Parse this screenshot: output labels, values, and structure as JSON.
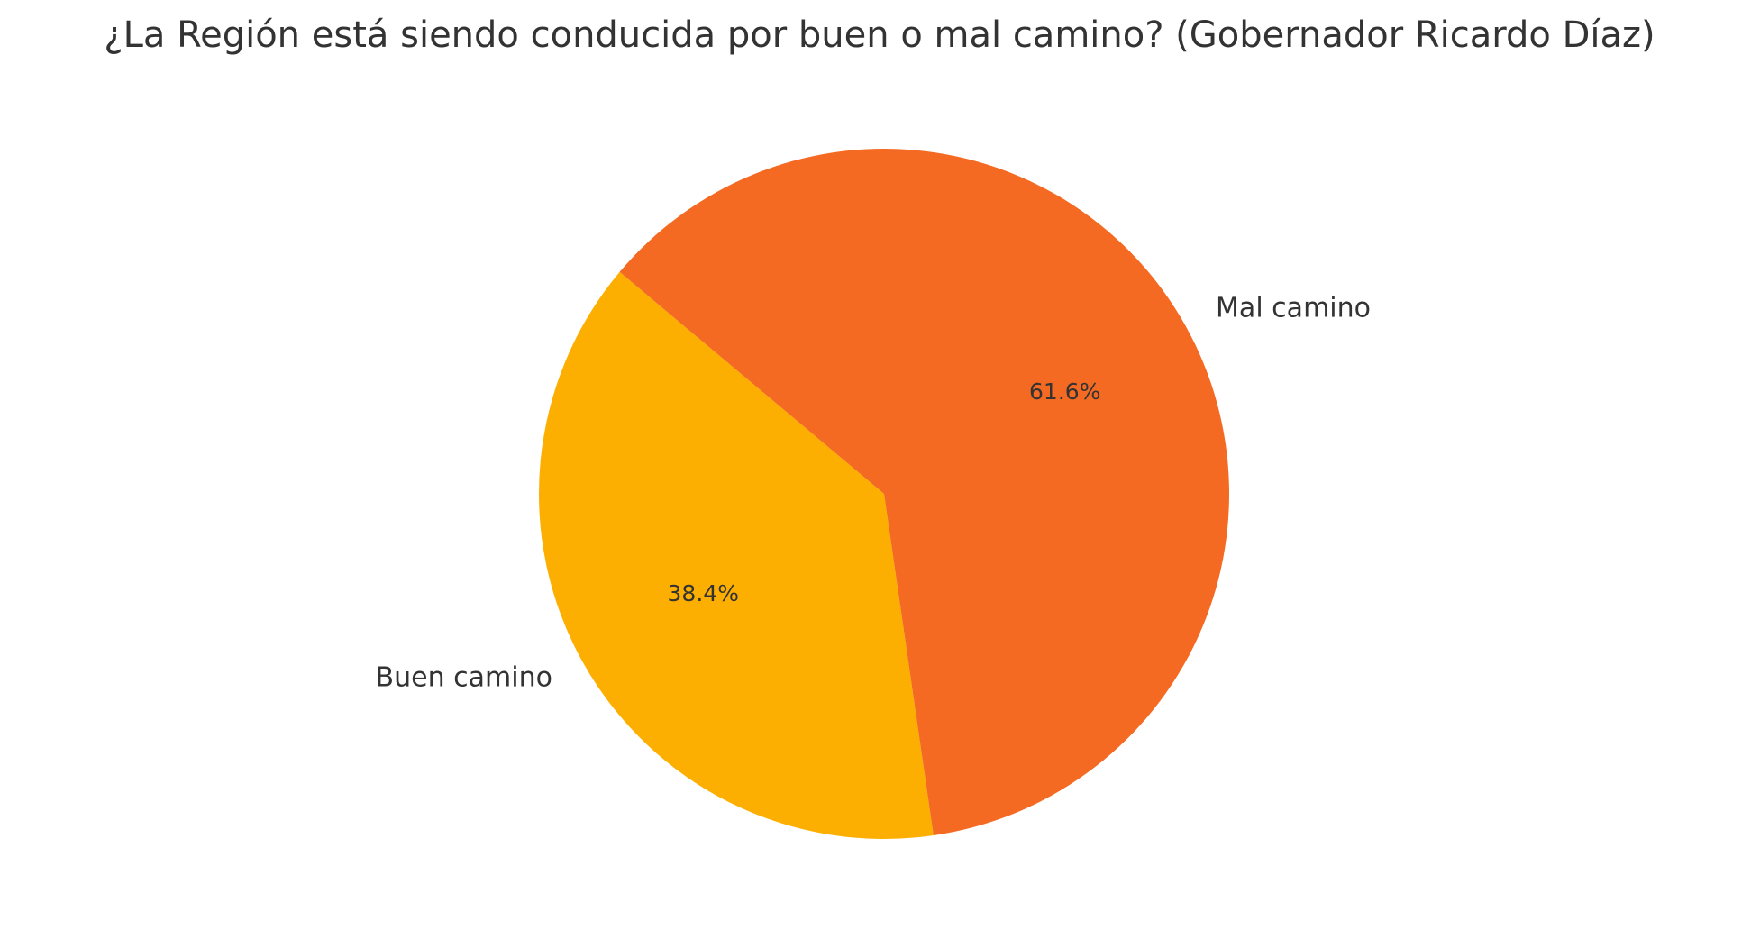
{
  "chart_data": {
    "type": "pie",
    "title": "¿La Región está siendo conducida por buen o mal camino? (Gobernador Ricardo Díaz)",
    "categories": [
      "Buen camino",
      "Mal camino"
    ],
    "values": [
      38.4,
      61.6
    ],
    "value_labels": [
      "38.4%",
      "61.6%"
    ],
    "colors": [
      "#fcaf00",
      "#f46a22"
    ]
  }
}
